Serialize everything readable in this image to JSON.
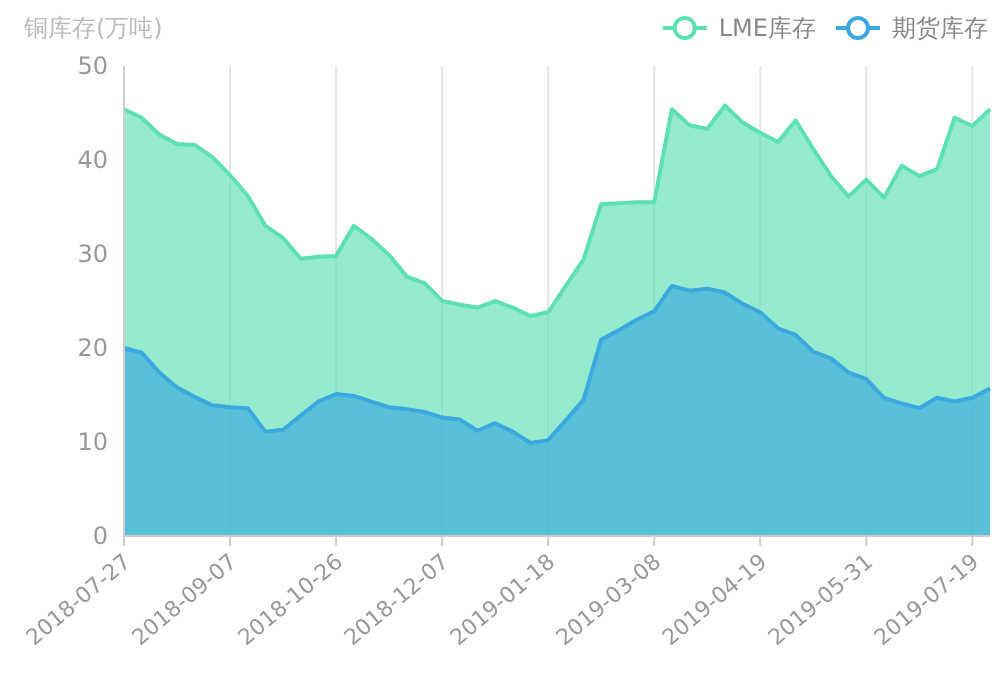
{
  "chart_data": {
    "type": "area",
    "ylabel": "铜库存(万吨)",
    "categories": [
      "2018-07-27",
      null,
      null,
      null,
      null,
      null,
      "2018-09-07",
      null,
      null,
      null,
      null,
      null,
      "2018-10-26",
      null,
      null,
      null,
      null,
      null,
      "2018-12-07",
      null,
      null,
      null,
      null,
      null,
      "2019-01-18",
      null,
      null,
      null,
      null,
      null,
      "2019-03-08",
      null,
      null,
      null,
      null,
      null,
      "2019-04-19",
      null,
      null,
      null,
      null,
      null,
      "2019-05-31",
      null,
      null,
      null,
      null,
      null,
      "2019-07-19",
      null
    ],
    "series": [
      {
        "name": "LME库存",
        "color": "#5ee0b5",
        "values": [
          45.4,
          44.5,
          42.7,
          41.7,
          41.6,
          40.3,
          38.4,
          36.2,
          33.0,
          31.7,
          29.5,
          29.7,
          29.8,
          33.0,
          31.6,
          29.9,
          27.6,
          26.9,
          25.0,
          24.6,
          24.3,
          25.0,
          24.3,
          23.4,
          23.8,
          26.6,
          29.4,
          35.3,
          35.4,
          35.5,
          35.5,
          45.4,
          43.7,
          43.3,
          45.8,
          44.0,
          42.9,
          41.9,
          44.2,
          41.2,
          38.3,
          36.1,
          37.9,
          36.0,
          39.4,
          38.3,
          39.0,
          44.5,
          43.6,
          45.4
        ]
      },
      {
        "name": "期货库存",
        "color": "#3aa9e0",
        "values": [
          20.0,
          19.5,
          17.4,
          15.8,
          14.8,
          13.9,
          13.7,
          13.6,
          11.1,
          11.3,
          12.8,
          14.3,
          15.1,
          14.9,
          14.3,
          13.7,
          13.5,
          13.2,
          12.6,
          12.4,
          11.2,
          12.0,
          11.1,
          9.9,
          10.2,
          12.3,
          14.5,
          20.9,
          21.9,
          23.0,
          23.9,
          26.6,
          26.1,
          26.3,
          25.9,
          24.7,
          23.8,
          22.1,
          21.4,
          19.6,
          18.9,
          17.4,
          16.7,
          14.7,
          14.1,
          13.6,
          14.7,
          14.3,
          14.7,
          15.7
        ]
      }
    ],
    "ylim": [
      0,
      50
    ],
    "yticks": [
      0,
      10,
      20,
      30,
      40,
      50
    ],
    "grid": "x",
    "legend": "top right"
  }
}
